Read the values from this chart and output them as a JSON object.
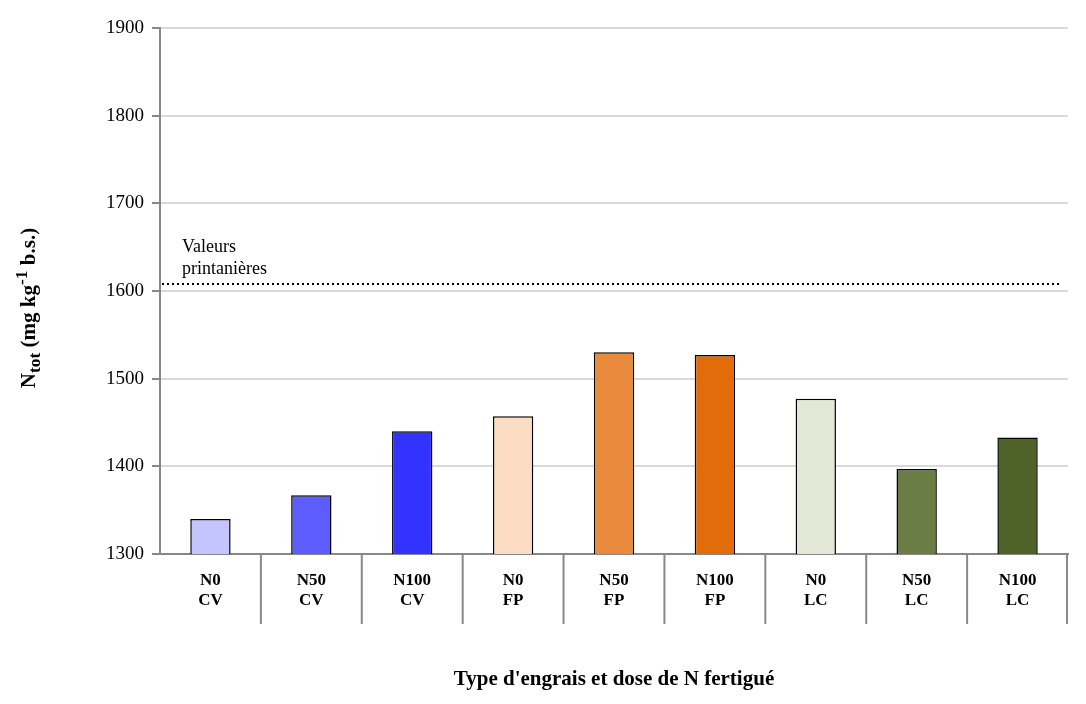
{
  "chart_data": {
    "type": "bar",
    "xlabel": "Type d'engrais et dose de N fertigué",
    "ylabel": "N$_{tot}$  (mg kg$^{-1}$ b.s.)",
    "categories": [
      "N0\nCV",
      "N50\nCV",
      "N100\nCV",
      "N0\nFP",
      "N50\nFP",
      "N100\nFP",
      "N0\nLC",
      "N50\nLC",
      "N100\nLC"
    ],
    "values": [
      1340,
      1367,
      1440,
      1457,
      1530,
      1527,
      1477,
      1397,
      1433
    ],
    "colors": [
      "#c4c4ff",
      "#5c5cff",
      "#3333ff",
      "#fcdcc2",
      "#ea8a3c",
      "#e36c0a",
      "#e2e7d6",
      "#6a7d45",
      "#4f6228"
    ],
    "ylim": [
      1300,
      1900
    ],
    "yticks": [
      1300,
      1400,
      1500,
      1600,
      1700,
      1800,
      1900
    ],
    "grid": "y",
    "legend": false,
    "ref_lines": [
      {
        "axis": "y",
        "value": 1608,
        "label": "Valeurs printanières",
        "line_style": "dotted",
        "color": "#000000"
      }
    ]
  }
}
